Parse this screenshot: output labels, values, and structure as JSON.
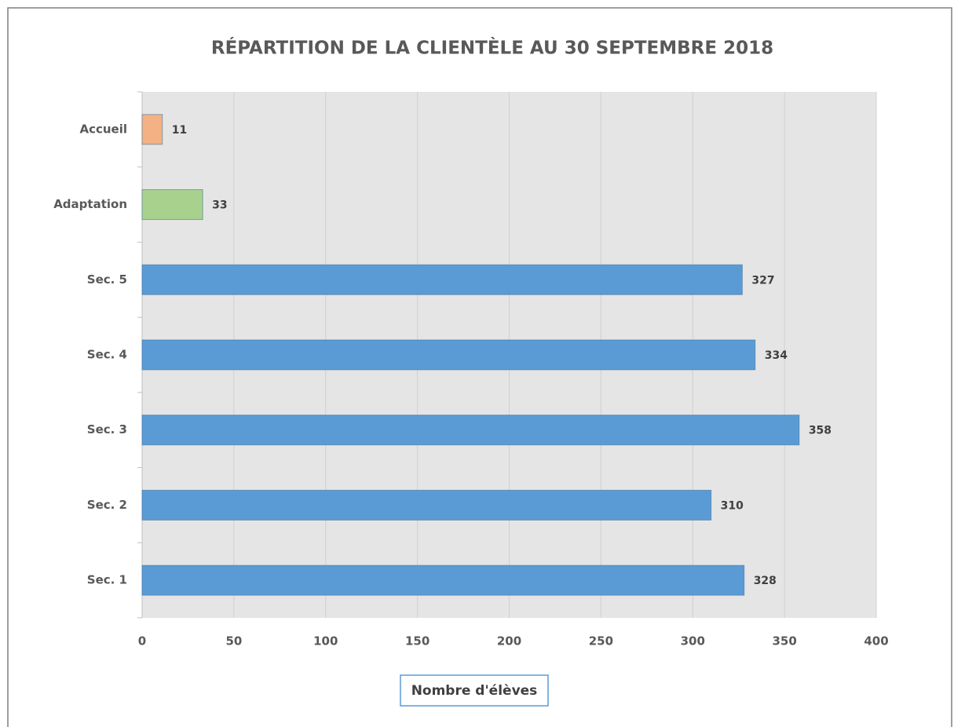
{
  "chart_data": {
    "type": "bar",
    "orientation": "horizontal",
    "title": "RÉPARTITION DE LA CLIENTÈLE AU 30 SEPTEMBRE 2018",
    "xlabel": "Nombre d'élèves",
    "categories": [
      "Accueil",
      "Adaptation",
      "Sec. 5",
      "Sec. 4",
      "Sec. 3",
      "Sec. 2",
      "Sec. 1"
    ],
    "values": [
      11,
      33,
      327,
      334,
      358,
      310,
      328
    ],
    "colors": [
      "#f4b183",
      "#a9d18e",
      "#5b9bd5",
      "#5b9bd5",
      "#5b9bd5",
      "#5b9bd5",
      "#5b9bd5"
    ],
    "xlim": [
      0,
      400
    ],
    "xticks": [
      0,
      50,
      100,
      150,
      200,
      250,
      300,
      350,
      400
    ],
    "grid": true
  }
}
